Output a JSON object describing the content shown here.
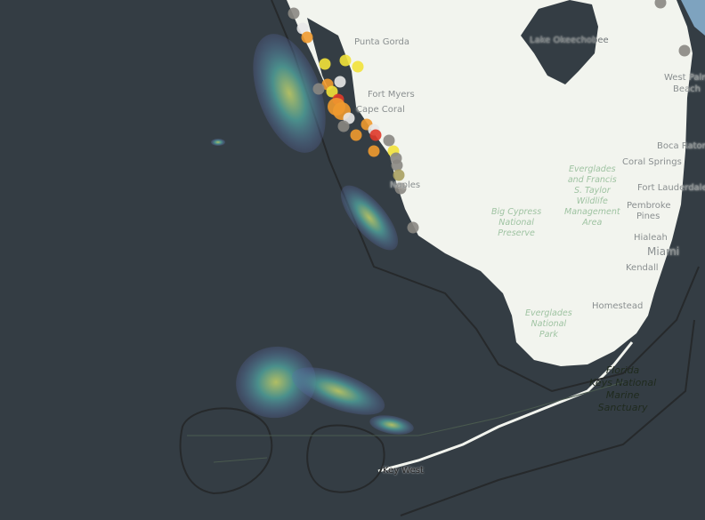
{
  "map": {
    "colors": {
      "water": "#343d44",
      "land": "#f2f4ee",
      "atlantic": "#7ea3bf",
      "radar_low": "#5a6aa8",
      "radar_mid": "#4e9e98",
      "radar_high": "#c6d46a"
    },
    "city_labels": [
      "Punta Gorda",
      "Fort Myers",
      "Cape Coral",
      "Naples",
      "Lake Okeechobee",
      "West Palm",
      "Beach",
      "Boca Raton",
      "Coral Springs",
      "Fort Lauderdale",
      "Pembroke",
      "Pines",
      "Hialeah",
      "Miami",
      "Kendall",
      "Homestead",
      "Key West"
    ],
    "park_labels": [
      "Everglades\nand Francis\nS. Taylor\nWildlife\nManagement\nArea",
      "Big Cypress\nNational\nPreserve",
      "Everglades\nNational\nPark"
    ],
    "sanctuary_label": "Florida\nKeys National\nMarine\nSanctuary",
    "marker_colors": {
      "gray": "#8a8782",
      "yellow": "#f2e23a",
      "orange": "#ef9a2f",
      "red": "#e03a2a",
      "white": "#e8e8e8",
      "olive": "#a8a060"
    }
  }
}
